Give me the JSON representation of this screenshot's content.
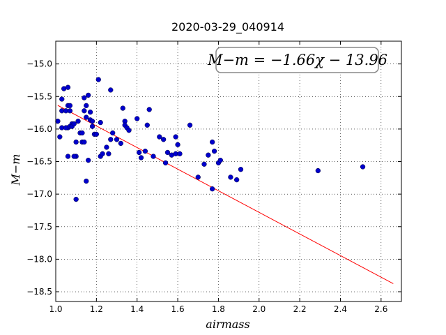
{
  "chart_data": {
    "type": "scatter",
    "title": "2020-03-29_040914",
    "xlabel": "airmass",
    "ylabel": "M−m",
    "xlim": [
      1.0,
      2.7
    ],
    "ylim": [
      -18.65,
      -14.65
    ],
    "y_inverted": true,
    "grid": true,
    "xticks": [
      1.0,
      1.2,
      1.4,
      1.6,
      1.8,
      2.0,
      2.2,
      2.4,
      2.6
    ],
    "xtick_labels": [
      "1.0",
      "1.2",
      "1.4",
      "1.6",
      "1.8",
      "2.0",
      "2.2",
      "2.4",
      "2.6"
    ],
    "yticks": [
      -15.0,
      -15.5,
      -16.0,
      -16.5,
      -17.0,
      -17.5,
      -18.0,
      -18.5
    ],
    "ytick_labels": [
      "−15.0",
      "−15.5",
      "−16.0",
      "−16.5",
      "−17.0",
      "−17.5",
      "−18.0",
      "−18.5"
    ],
    "annotation": "M−m = −1.66χ − 13.96",
    "series": [
      {
        "kind": "points",
        "color": "#0000cc",
        "x": [
          1.01,
          1.03,
          1.03,
          1.04,
          1.05,
          1.06,
          1.06,
          1.06,
          1.07,
          1.07,
          1.08,
          1.02,
          1.03,
          1.05,
          1.07,
          1.08,
          1.09,
          1.1,
          1.06,
          1.09,
          1.1,
          1.11,
          1.12,
          1.13,
          1.13,
          1.14,
          1.14,
          1.15,
          1.15,
          1.16,
          1.17,
          1.17,
          1.18,
          1.18,
          1.19,
          1.2,
          1.21,
          1.22,
          1.22,
          1.23,
          1.25,
          1.26,
          1.27,
          1.27,
          1.28,
          1.3,
          1.32,
          1.33,
          1.34,
          1.34,
          1.35,
          1.36,
          1.4,
          1.41,
          1.42,
          1.44,
          1.45,
          1.46,
          1.48,
          1.51,
          1.53,
          1.54,
          1.55,
          1.57,
          1.59,
          1.59,
          1.6,
          1.61,
          1.66,
          1.7,
          1.73,
          1.75,
          1.77,
          1.77,
          1.78,
          1.8,
          1.81,
          1.86,
          1.89,
          1.91,
          2.29,
          2.51,
          1.1,
          1.15,
          1.16,
          1.14
        ],
        "y": [
          -15.88,
          -15.54,
          -15.72,
          -15.38,
          -15.72,
          -15.36,
          -15.64,
          -15.98,
          -15.64,
          -15.72,
          -15.92,
          -16.12,
          -15.98,
          -15.98,
          -15.96,
          -15.96,
          -15.92,
          -16.42,
          -16.42,
          -16.42,
          -16.2,
          -15.88,
          -16.06,
          -16.06,
          -16.2,
          -15.52,
          -15.72,
          -15.64,
          -15.82,
          -15.48,
          -15.86,
          -15.74,
          -15.88,
          -15.96,
          -16.08,
          -16.08,
          -15.24,
          -16.42,
          -15.9,
          -16.38,
          -16.28,
          -16.38,
          -15.4,
          -16.16,
          -16.06,
          -16.16,
          -16.22,
          -15.68,
          -15.88,
          -15.94,
          -15.98,
          -16.02,
          -15.84,
          -16.36,
          -16.44,
          -16.34,
          -15.94,
          -15.7,
          -16.42,
          -16.12,
          -16.16,
          -16.52,
          -16.36,
          -16.4,
          -16.38,
          -16.12,
          -16.24,
          -16.38,
          -15.94,
          -16.74,
          -16.54,
          -16.4,
          -16.92,
          -16.2,
          -16.34,
          -16.52,
          -16.48,
          -16.74,
          -16.78,
          -16.62,
          -16.64,
          -16.58,
          -17.08,
          -16.8,
          -16.48,
          -16.2
        ]
      },
      {
        "kind": "fit-line",
        "color": "#ff0000",
        "slope": -1.66,
        "intercept": -13.96,
        "x": [
          1.01,
          2.66
        ]
      }
    ]
  }
}
